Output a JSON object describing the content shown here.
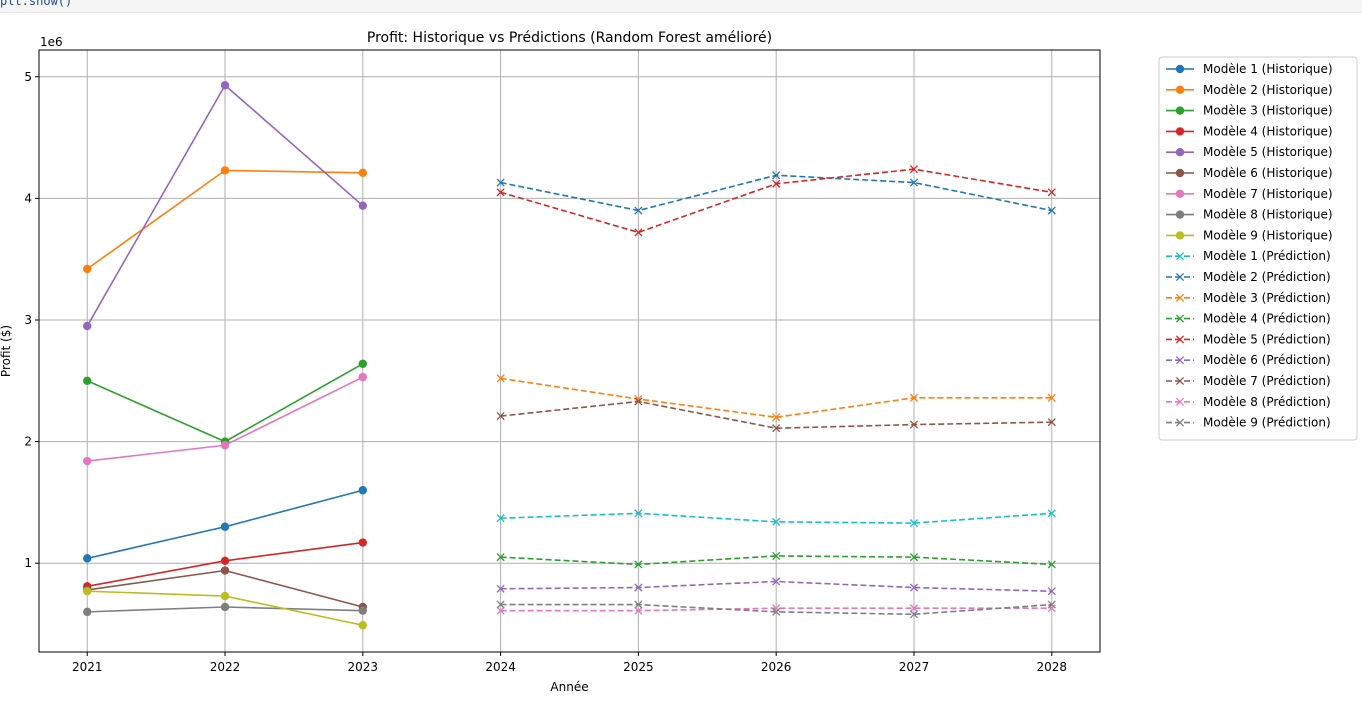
{
  "code_strip_text": "plt.show()",
  "chart_data": {
    "type": "line",
    "title": "Profit: Historique vs Prédictions (Random Forest amélioré)",
    "xlabel": "Année",
    "ylabel": "Profit ($)",
    "y_offset_label": "1e6",
    "xlim": [
      2020.65,
      2028.35
    ],
    "ylim": [
      270000,
      5220000
    ],
    "x_ticks": [
      2021,
      2022,
      2023,
      2024,
      2025,
      2026,
      2027,
      2028
    ],
    "y_ticks": [
      1000000,
      2000000,
      3000000,
      4000000,
      5000000
    ],
    "y_tick_labels": [
      "1",
      "2",
      "3",
      "4",
      "5"
    ],
    "grid": true,
    "legend_position": "outside-right",
    "series": [
      {
        "name": "Modèle 1 (Historique)",
        "kind": "historique",
        "color": "#1f77b4",
        "marker": "o",
        "x": [
          2021,
          2022,
          2023
        ],
        "values": [
          1040000,
          1300000,
          1600000
        ]
      },
      {
        "name": "Modèle 2 (Historique)",
        "kind": "historique",
        "color": "#ff7f0e",
        "marker": "o",
        "x": [
          2021,
          2022,
          2023
        ],
        "values": [
          3420000,
          4230000,
          4210000
        ]
      },
      {
        "name": "Modèle 3 (Historique)",
        "kind": "historique",
        "color": "#2ca02c",
        "marker": "o",
        "x": [
          2021,
          2022,
          2023
        ],
        "values": [
          2500000,
          2000000,
          2640000
        ]
      },
      {
        "name": "Modèle 4 (Historique)",
        "kind": "historique",
        "color": "#d62728",
        "marker": "o",
        "x": [
          2021,
          2022,
          2023
        ],
        "values": [
          810000,
          1020000,
          1170000
        ]
      },
      {
        "name": "Modèle 5 (Historique)",
        "kind": "historique",
        "color": "#9467bd",
        "marker": "o",
        "x": [
          2021,
          2022,
          2023
        ],
        "values": [
          2950000,
          4930000,
          3940000
        ]
      },
      {
        "name": "Modèle 6 (Historique)",
        "kind": "historique",
        "color": "#8c564b",
        "marker": "o",
        "x": [
          2021,
          2022,
          2023
        ],
        "values": [
          780000,
          940000,
          640000
        ]
      },
      {
        "name": "Modèle 7 (Historique)",
        "kind": "historique",
        "color": "#e377c2",
        "marker": "o",
        "x": [
          2021,
          2022,
          2023
        ],
        "values": [
          1840000,
          1970000,
          2530000
        ]
      },
      {
        "name": "Modèle 8 (Historique)",
        "kind": "historique",
        "color": "#7f7f7f",
        "marker": "o",
        "x": [
          2021,
          2022,
          2023
        ],
        "values": [
          600000,
          640000,
          610000
        ]
      },
      {
        "name": "Modèle 9 (Historique)",
        "kind": "historique",
        "color": "#bcbd22",
        "marker": "o",
        "x": [
          2021,
          2022,
          2023
        ],
        "values": [
          770000,
          730000,
          490000
        ]
      },
      {
        "name": "Modèle 1 (Prédiction)",
        "kind": "prediction",
        "color": "#17becf",
        "marker": "x",
        "x": [
          2024,
          2025,
          2026,
          2027,
          2028
        ],
        "values": [
          1370000,
          1410000,
          1340000,
          1330000,
          1410000
        ]
      },
      {
        "name": "Modèle 2 (Prédiction)",
        "kind": "prediction",
        "color": "#1f77b4",
        "marker": "x",
        "x": [
          2024,
          2025,
          2026,
          2027,
          2028
        ],
        "values": [
          4130000,
          3900000,
          4190000,
          4130000,
          3900000
        ]
      },
      {
        "name": "Modèle 3 (Prédiction)",
        "kind": "prediction",
        "color": "#ff7f0e",
        "marker": "x",
        "x": [
          2024,
          2025,
          2026,
          2027,
          2028
        ],
        "values": [
          2520000,
          2350000,
          2200000,
          2360000,
          2360000
        ]
      },
      {
        "name": "Modèle 4 (Prédiction)",
        "kind": "prediction",
        "color": "#2ca02c",
        "marker": "x",
        "x": [
          2024,
          2025,
          2026,
          2027,
          2028
        ],
        "values": [
          1050000,
          990000,
          1060000,
          1050000,
          990000
        ]
      },
      {
        "name": "Modèle 5 (Prédiction)",
        "kind": "prediction",
        "color": "#d62728",
        "marker": "x",
        "x": [
          2024,
          2025,
          2026,
          2027,
          2028
        ],
        "values": [
          4050000,
          3720000,
          4120000,
          4240000,
          4050000
        ]
      },
      {
        "name": "Modèle 6 (Prédiction)",
        "kind": "prediction",
        "color": "#9467bd",
        "marker": "x",
        "x": [
          2024,
          2025,
          2026,
          2027,
          2028
        ],
        "values": [
          790000,
          800000,
          850000,
          800000,
          770000
        ]
      },
      {
        "name": "Modèle 7 (Prédiction)",
        "kind": "prediction",
        "color": "#8c564b",
        "marker": "x",
        "x": [
          2024,
          2025,
          2026,
          2027,
          2028
        ],
        "values": [
          2210000,
          2330000,
          2110000,
          2140000,
          2160000
        ]
      },
      {
        "name": "Modèle 8 (Prédiction)",
        "kind": "prediction",
        "color": "#e377c2",
        "marker": "x",
        "x": [
          2024,
          2025,
          2026,
          2027,
          2028
        ],
        "values": [
          610000,
          610000,
          630000,
          630000,
          630000
        ]
      },
      {
        "name": "Modèle 9 (Prédiction)",
        "kind": "prediction",
        "color": "#7f7f7f",
        "marker": "x",
        "x": [
          2024,
          2025,
          2026,
          2027,
          2028
        ],
        "values": [
          660000,
          660000,
          600000,
          580000,
          660000
        ]
      }
    ]
  }
}
